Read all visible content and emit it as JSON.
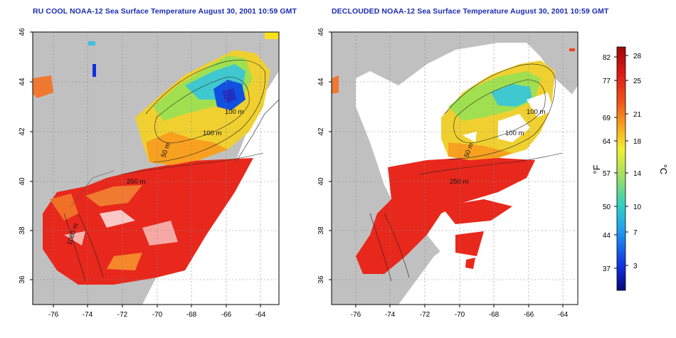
{
  "titles": {
    "left": "RU COOL NOAA-12 Sea Surface Temperature August 30, 2001 10:59 GMT",
    "right": "DECLOUDED NOAA-12 Sea Surface Temperature August 30, 2001 10:59 GMT"
  },
  "axes": {
    "lon_ticks": [
      "-76",
      "-74",
      "-72",
      "-70",
      "-68",
      "-66",
      "-64"
    ],
    "lat_ticks": [
      "46",
      "44",
      "42",
      "40",
      "38",
      "36"
    ]
  },
  "contours": {
    "m100a": "100 m",
    "m100b": "100 m",
    "m50": "50 m",
    "m250": "250 m",
    "m1000": "1000 m"
  },
  "colorbar": {
    "f_label": "°F",
    "c_label": "°C",
    "f_ticks": [
      "82",
      "77",
      "69",
      "64",
      "57",
      "50",
      "44",
      "37"
    ],
    "c_ticks": [
      "28",
      "25",
      "21",
      "18",
      "14",
      "10",
      "7",
      "3"
    ]
  },
  "colors": {
    "land": "#c0c0c0",
    "cloud": "#ffffff",
    "warm": "#e8281c",
    "cold": "#1028d8",
    "title": "#1a2bb0"
  }
}
